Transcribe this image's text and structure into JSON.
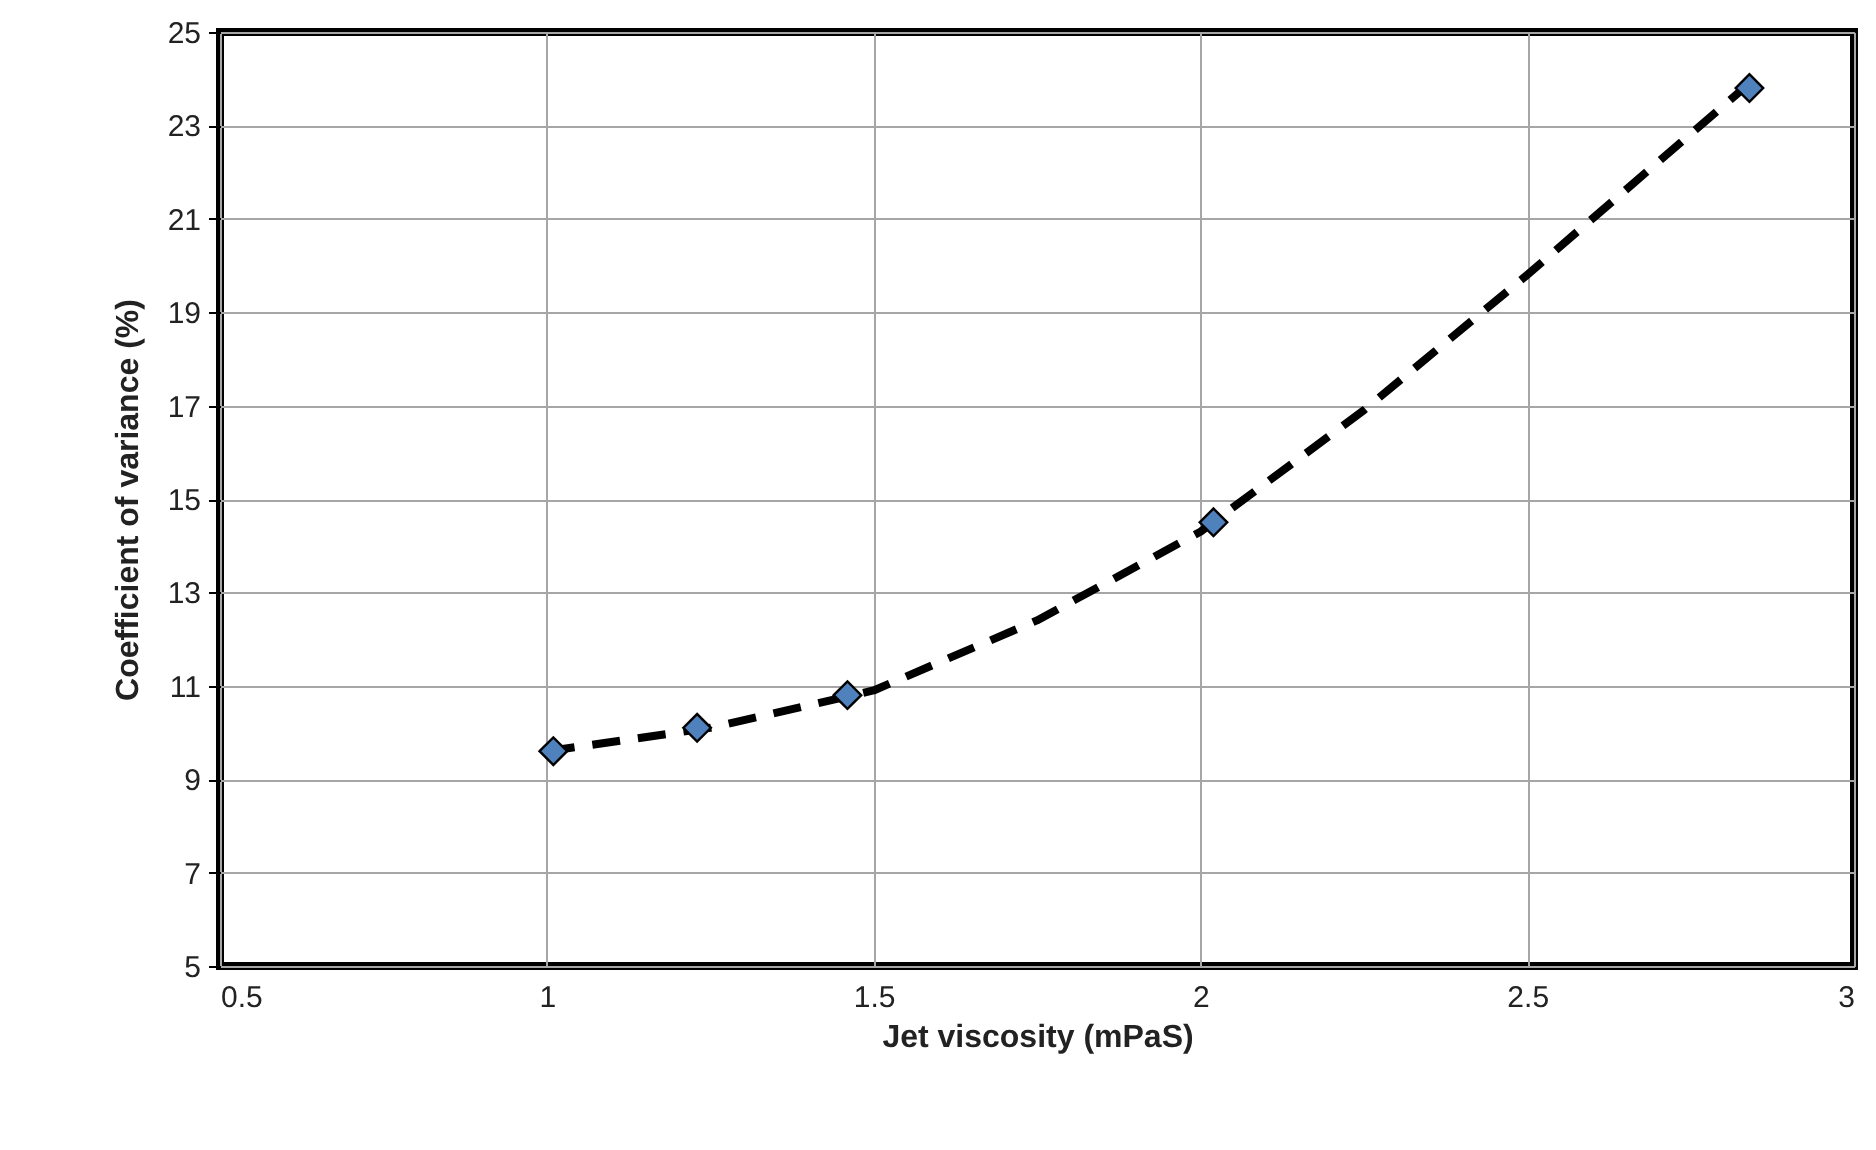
{
  "chart_data": {
    "type": "scatter",
    "xlabel": "Jet viscosity (mPaS)",
    "ylabel": "Coefficient of variance (%)",
    "xlim": [
      0.5,
      3
    ],
    "xticks": [
      0.5,
      1,
      1.5,
      2,
      2.5,
      3
    ],
    "ylim": [
      5,
      25
    ],
    "yticks": [
      5,
      7,
      9,
      11,
      13,
      15,
      17,
      19,
      21,
      23,
      25
    ],
    "grid": true,
    "series": [
      {
        "type": "line",
        "color": "#000000",
        "line_style": "dashed",
        "marker": "none",
        "x": [
          1.0,
          1.25,
          1.5,
          1.75,
          2.0,
          2.25,
          2.5,
          2.84
        ],
        "values": [
          9.6,
          10.1,
          10.9,
          12.4,
          14.3,
          16.9,
          19.8,
          23.9
        ]
      },
      {
        "color": "#4f81bd",
        "marker": "diamond",
        "x": [
          1.01,
          1.23,
          1.46,
          2.02,
          2.84
        ],
        "values": [
          9.6,
          10.1,
          10.8,
          14.5,
          23.8
        ]
      }
    ]
  }
}
